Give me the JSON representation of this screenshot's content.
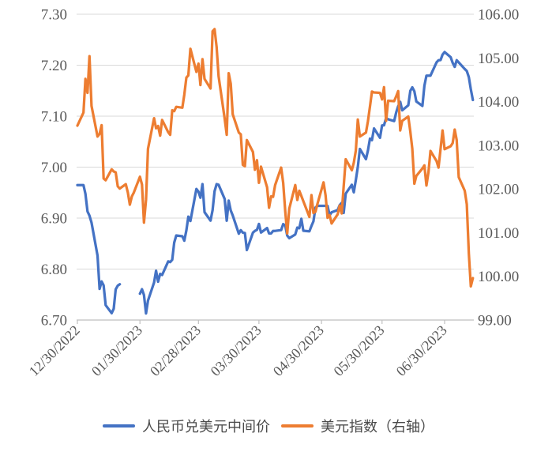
{
  "colors": {
    "background": "#FFFFFF",
    "gridline": "#D9D9D9",
    "axis_line": "#BFBFBF",
    "axis_text": "#595959",
    "legend_text": "#4A4A4A",
    "series_blue": "#4472C4",
    "series_orange": "#ED7D31"
  },
  "legend": {
    "items": [
      {
        "label": "人民币兑美元中间价",
        "color": "#4472C4"
      },
      {
        "label": "美元指数（右轴）",
        "color": "#ED7D31"
      }
    ]
  },
  "chart_data": {
    "type": "line",
    "title": "",
    "xlabel": "",
    "ylabel_left": "",
    "ylabel_right": "",
    "grid": true,
    "legend_position": "bottom",
    "left_axis": {
      "min": 6.7,
      "max": 7.3,
      "step": 0.1,
      "tick_labels": [
        "7.30",
        "7.20",
        "7.10",
        "7.00",
        "6.90",
        "6.80",
        "6.70"
      ]
    },
    "right_axis": {
      "min": 99.0,
      "max": 106.0,
      "step": 1.0,
      "tick_labels": [
        "106.00",
        "105.00",
        "104.00",
        "103.00",
        "102.00",
        "101.00",
        "100.00",
        "99.00"
      ]
    },
    "x_ticks": [
      {
        "date": "2022-12-30",
        "label": "12/30/2022"
      },
      {
        "date": "2023-01-30",
        "label": "01/30/2023"
      },
      {
        "date": "2023-02-28",
        "label": "02/28/2023"
      },
      {
        "date": "2023-03-30",
        "label": "03/30/2023"
      },
      {
        "date": "2023-04-30",
        "label": "04/30/2023"
      },
      {
        "date": "2023-05-30",
        "label": "05/30/2023"
      },
      {
        "date": "2023-06-30",
        "label": "06/30/2023"
      }
    ],
    "x_dates": [
      "2022-12-30",
      "2023-01-02",
      "2023-01-03",
      "2023-01-04",
      "2023-01-05",
      "2023-01-06",
      "2023-01-09",
      "2023-01-10",
      "2023-01-11",
      "2023-01-12",
      "2023-01-13",
      "2023-01-16",
      "2023-01-17",
      "2023-01-18",
      "2023-01-19",
      "2023-01-20",
      "2023-01-23",
      "2023-01-24",
      "2023-01-25",
      "2023-01-26",
      "2023-01-27",
      "2023-01-30",
      "2023-01-31",
      "2023-02-01",
      "2023-02-02",
      "2023-02-03",
      "2023-02-06",
      "2023-02-07",
      "2023-02-08",
      "2023-02-09",
      "2023-02-10",
      "2023-02-13",
      "2023-02-14",
      "2023-02-15",
      "2023-02-16",
      "2023-02-17",
      "2023-02-20",
      "2023-02-21",
      "2023-02-22",
      "2023-02-23",
      "2023-02-24",
      "2023-02-27",
      "2023-02-28",
      "2023-03-01",
      "2023-03-02",
      "2023-03-03",
      "2023-03-06",
      "2023-03-07",
      "2023-03-08",
      "2023-03-09",
      "2023-03-10",
      "2023-03-13",
      "2023-03-14",
      "2023-03-15",
      "2023-03-16",
      "2023-03-17",
      "2023-03-20",
      "2023-03-21",
      "2023-03-22",
      "2023-03-23",
      "2023-03-24",
      "2023-03-27",
      "2023-03-28",
      "2023-03-29",
      "2023-03-30",
      "2023-03-31",
      "2023-04-03",
      "2023-04-04",
      "2023-04-05",
      "2023-04-06",
      "2023-04-07",
      "2023-04-10",
      "2023-04-11",
      "2023-04-12",
      "2023-04-13",
      "2023-04-14",
      "2023-04-17",
      "2023-04-18",
      "2023-04-19",
      "2023-04-20",
      "2023-04-21",
      "2023-04-24",
      "2023-04-25",
      "2023-04-26",
      "2023-04-27",
      "2023-04-28",
      "2023-05-01",
      "2023-05-02",
      "2023-05-03",
      "2023-05-04",
      "2023-05-05",
      "2023-05-08",
      "2023-05-09",
      "2023-05-10",
      "2023-05-11",
      "2023-05-12",
      "2023-05-15",
      "2023-05-16",
      "2023-05-17",
      "2023-05-18",
      "2023-05-19",
      "2023-05-22",
      "2023-05-23",
      "2023-05-24",
      "2023-05-25",
      "2023-05-26",
      "2023-05-29",
      "2023-05-30",
      "2023-05-31",
      "2023-06-01",
      "2023-06-02",
      "2023-06-05",
      "2023-06-06",
      "2023-06-07",
      "2023-06-08",
      "2023-06-09",
      "2023-06-12",
      "2023-06-13",
      "2023-06-14",
      "2023-06-15",
      "2023-06-16",
      "2023-06-19",
      "2023-06-20",
      "2023-06-21",
      "2023-06-22",
      "2023-06-23",
      "2023-06-26",
      "2023-06-27",
      "2023-06-28",
      "2023-06-29",
      "2023-06-30",
      "2023-07-03",
      "2023-07-04",
      "2023-07-05",
      "2023-07-06",
      "2023-07-07",
      "2023-07-10",
      "2023-07-11",
      "2023-07-12",
      "2023-07-13",
      "2023-07-14"
    ],
    "series": [
      {
        "id": "cny-parity",
        "name": "人民币兑美元中间价",
        "axis": "left",
        "color": "#4472C4",
        "values": [
          6.9646,
          6.9646,
          6.9475,
          6.9131,
          6.9048,
          6.8912,
          6.8265,
          6.7611,
          6.7756,
          6.768,
          6.7292,
          6.7135,
          6.7222,
          6.7602,
          6.7674,
          6.7702,
          null,
          null,
          null,
          null,
          null,
          6.7516,
          6.7604,
          6.7492,
          6.713,
          6.7382,
          6.7737,
          6.7967,
          6.7752,
          6.7905,
          6.7884,
          6.8151,
          6.8136,
          6.8183,
          6.8519,
          6.8659,
          6.8643,
          6.8557,
          6.8759,
          6.9028,
          6.8942,
          6.9572,
          6.9519,
          6.94,
          6.9666,
          6.9117,
          6.8951,
          6.9156,
          6.9525,
          6.9666,
          6.9655,
          6.9375,
          6.8949,
          6.9342,
          6.9149,
          6.9052,
          6.8694,
          6.8763,
          6.8715,
          6.8709,
          6.8374,
          6.8714,
          6.8749,
          6.8771,
          6.8886,
          6.8717,
          6.8805,
          6.8699,
          6.8699,
          6.8747,
          6.8749,
          6.8764,
          6.8882,
          6.8854,
          6.8658,
          6.8606,
          6.8679,
          6.8814,
          6.8802,
          6.8987,
          6.8752,
          6.8741,
          6.8847,
          6.8937,
          6.9207,
          6.924,
          6.924,
          6.924,
          6.924,
          6.9054,
          6.9114,
          6.9158,
          6.9255,
          6.9299,
          6.9101,
          6.9481,
          6.9654,
          6.9506,
          6.9748,
          7.0003,
          7.0356,
          7.0157,
          7.0326,
          7.056,
          7.0529,
          7.076,
          7.0575,
          7.0818,
          7.0821,
          7.0965,
          7.0939,
          7.0904,
          7.1075,
          7.1196,
          7.128,
          7.1115,
          7.1212,
          7.1498,
          7.1566,
          7.1489,
          7.1289,
          7.1201,
          7.1596,
          7.1795,
          7.1795,
          7.1795,
          7.2056,
          7.2098,
          7.2101,
          7.2208,
          7.2258,
          7.2157,
          7.2046,
          7.1968,
          7.2098,
          7.2054,
          7.1926,
          7.1886,
          7.1765,
          7.1527,
          7.1318
        ]
      },
      {
        "id": "usd-index",
        "name": "美元指数（右轴）",
        "axis": "right",
        "color": "#ED7D31",
        "values": [
          103.45,
          103.75,
          104.52,
          104.2,
          105.04,
          103.9,
          103.2,
          103.26,
          103.46,
          102.24,
          102.2,
          102.45,
          102.4,
          102.38,
          102.06,
          102.01,
          102.11,
          101.92,
          101.64,
          101.83,
          101.92,
          102.28,
          102.1,
          101.23,
          101.75,
          102.92,
          103.62,
          103.39,
          103.44,
          103.22,
          103.58,
          103.3,
          103.24,
          103.8,
          103.78,
          103.88,
          103.86,
          104.16,
          104.55,
          104.6,
          105.21,
          104.68,
          104.87,
          104.38,
          104.97,
          104.52,
          104.3,
          105.61,
          105.66,
          105.25,
          104.58,
          103.61,
          103.24,
          104.65,
          104.41,
          103.71,
          103.29,
          103.25,
          102.55,
          102.52,
          103.12,
          102.85,
          102.44,
          102.66,
          102.14,
          102.51,
          102.04,
          101.57,
          101.83,
          101.82,
          102.09,
          102.49,
          102.14,
          101.49,
          100.98,
          101.55,
          102.09,
          101.75,
          101.96,
          101.84,
          101.72,
          101.36,
          101.86,
          101.45,
          101.48,
          101.66,
          102.15,
          101.85,
          101.34,
          101.4,
          101.21,
          101.42,
          101.62,
          101.44,
          102.06,
          102.68,
          102.43,
          102.6,
          102.88,
          103.59,
          103.2,
          103.29,
          103.55,
          103.89,
          104.23,
          104.21,
          104.2,
          104.05,
          104.33,
          103.56,
          104.02,
          104.01,
          104.12,
          104.24,
          103.34,
          103.56,
          103.66,
          103.31,
          102.92,
          102.12,
          102.3,
          102.47,
          102.54,
          102.08,
          102.39,
          102.87,
          102.64,
          102.49,
          102.92,
          103.34,
          102.91,
          102.98,
          103.05,
          103.36,
          103.12,
          102.27,
          101.96,
          101.65,
          100.52,
          99.77,
          99.96
        ]
      }
    ]
  }
}
